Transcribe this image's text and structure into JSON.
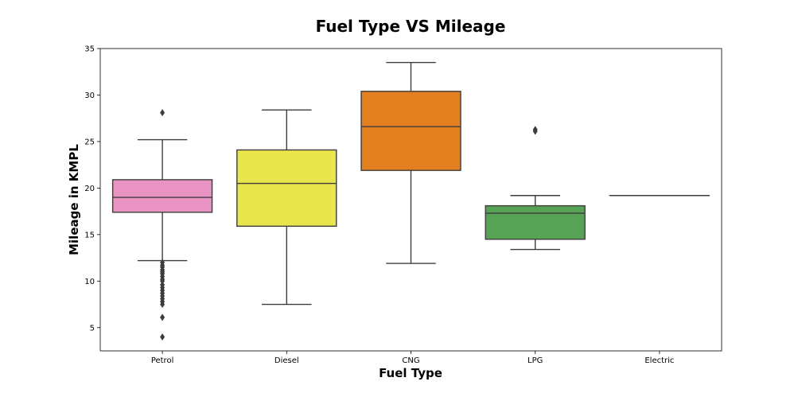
{
  "chart_data": {
    "type": "box",
    "title": "Fuel Type VS Mileage",
    "xlabel": "Fuel Type",
    "ylabel": "Mileage in KMPL",
    "ylim": [
      2.5,
      35
    ],
    "yticks": [
      5,
      10,
      15,
      20,
      25,
      30,
      35
    ],
    "grid": false,
    "categories": [
      "Petrol",
      "Diesel",
      "CNG",
      "LPG",
      "Electric"
    ],
    "boxes": [
      {
        "category": "Petrol",
        "whisker_low": 12.2,
        "q1": 17.4,
        "median": 19.0,
        "q3": 20.9,
        "whisker_high": 25.2,
        "outliers": [
          28.1,
          12.0,
          11.7,
          11.5,
          11.2,
          11.0,
          10.8,
          10.5,
          10.2,
          10.0,
          9.6,
          9.3,
          9.0,
          8.7,
          8.4,
          8.1,
          7.8,
          7.5,
          6.1,
          4.0
        ],
        "color": "#e993c2"
      },
      {
        "category": "Diesel",
        "whisker_low": 7.5,
        "q1": 15.9,
        "median": 20.5,
        "q3": 24.1,
        "whisker_high": 28.4,
        "outliers": [],
        "color": "#e8e54d"
      },
      {
        "category": "CNG",
        "whisker_low": 11.9,
        "q1": 21.9,
        "median": 26.6,
        "q3": 30.4,
        "whisker_high": 33.5,
        "outliers": [],
        "color": "#e27f1f"
      },
      {
        "category": "LPG",
        "whisker_low": 13.4,
        "q1": 14.5,
        "median": 17.3,
        "q3": 18.1,
        "whisker_high": 19.2,
        "outliers": [
          26.3,
          26.1
        ],
        "color": "#57a356"
      },
      {
        "category": "Electric",
        "whisker_low": 19.2,
        "q1": 19.2,
        "median": 19.2,
        "q3": 19.2,
        "whisker_high": 19.2,
        "outliers": [],
        "color": "#8c8c8c"
      }
    ]
  }
}
